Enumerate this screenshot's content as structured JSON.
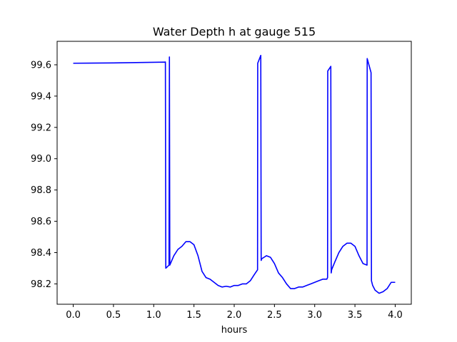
{
  "chart_data": {
    "type": "line",
    "title": "Water Depth h at gauge 515",
    "xlabel": "hours",
    "ylabel": "",
    "xlim": [
      -0.2,
      4.2
    ],
    "ylim": [
      98.07,
      99.75
    ],
    "xticks": [
      0.0,
      0.5,
      1.0,
      1.5,
      2.0,
      2.5,
      3.0,
      3.5,
      4.0
    ],
    "xtick_labels": [
      "0.0",
      "0.5",
      "1.0",
      "1.5",
      "2.0",
      "2.5",
      "3.0",
      "3.5",
      "4.0"
    ],
    "yticks": [
      98.2,
      98.4,
      98.6,
      98.8,
      99.0,
      99.2,
      99.4,
      99.6
    ],
    "ytick_labels": [
      "98.2",
      "98.4",
      "98.6",
      "98.8",
      "99.0",
      "99.2",
      "99.4",
      "99.6"
    ],
    "grid": false,
    "series": [
      {
        "color": "#0000ff",
        "x": [
          0.0,
          0.5,
          0.85,
          1.14,
          1.145,
          1.15,
          1.17,
          1.19,
          1.195,
          1.2,
          1.25,
          1.3,
          1.35,
          1.4,
          1.45,
          1.5,
          1.55,
          1.6,
          1.65,
          1.7,
          1.75,
          1.8,
          1.85,
          1.9,
          1.95,
          2.0,
          2.05,
          2.1,
          2.15,
          2.2,
          2.25,
          2.29,
          2.292,
          2.33,
          2.335,
          2.34,
          2.37,
          2.4,
          2.45,
          2.5,
          2.55,
          2.6,
          2.65,
          2.7,
          2.75,
          2.8,
          2.85,
          2.9,
          2.95,
          3.0,
          3.05,
          3.1,
          3.15,
          3.16,
          3.162,
          3.2,
          3.205,
          3.21,
          3.25,
          3.3,
          3.35,
          3.4,
          3.45,
          3.5,
          3.55,
          3.6,
          3.65,
          3.652,
          3.7,
          3.705,
          3.72,
          3.75,
          3.8,
          3.85,
          3.9,
          3.95,
          4.0
        ],
        "y": [
          99.61,
          99.612,
          99.615,
          99.617,
          99.618,
          98.3,
          98.31,
          98.32,
          99.65,
          98.32,
          98.38,
          98.42,
          98.44,
          98.47,
          98.47,
          98.45,
          98.38,
          98.28,
          98.24,
          98.23,
          98.21,
          98.19,
          98.18,
          98.185,
          98.18,
          98.19,
          98.19,
          98.2,
          98.2,
          98.22,
          98.26,
          98.29,
          99.61,
          99.66,
          98.35,
          98.36,
          98.37,
          98.38,
          98.37,
          98.33,
          98.27,
          98.24,
          98.2,
          98.17,
          98.17,
          98.18,
          98.18,
          98.19,
          98.2,
          98.21,
          98.22,
          98.23,
          98.23,
          98.24,
          99.56,
          99.59,
          98.27,
          98.29,
          98.34,
          98.4,
          98.44,
          98.46,
          98.46,
          98.44,
          98.38,
          98.33,
          98.32,
          99.64,
          99.55,
          98.22,
          98.19,
          98.16,
          98.14,
          98.15,
          98.17,
          98.21,
          98.21
        ]
      }
    ]
  }
}
